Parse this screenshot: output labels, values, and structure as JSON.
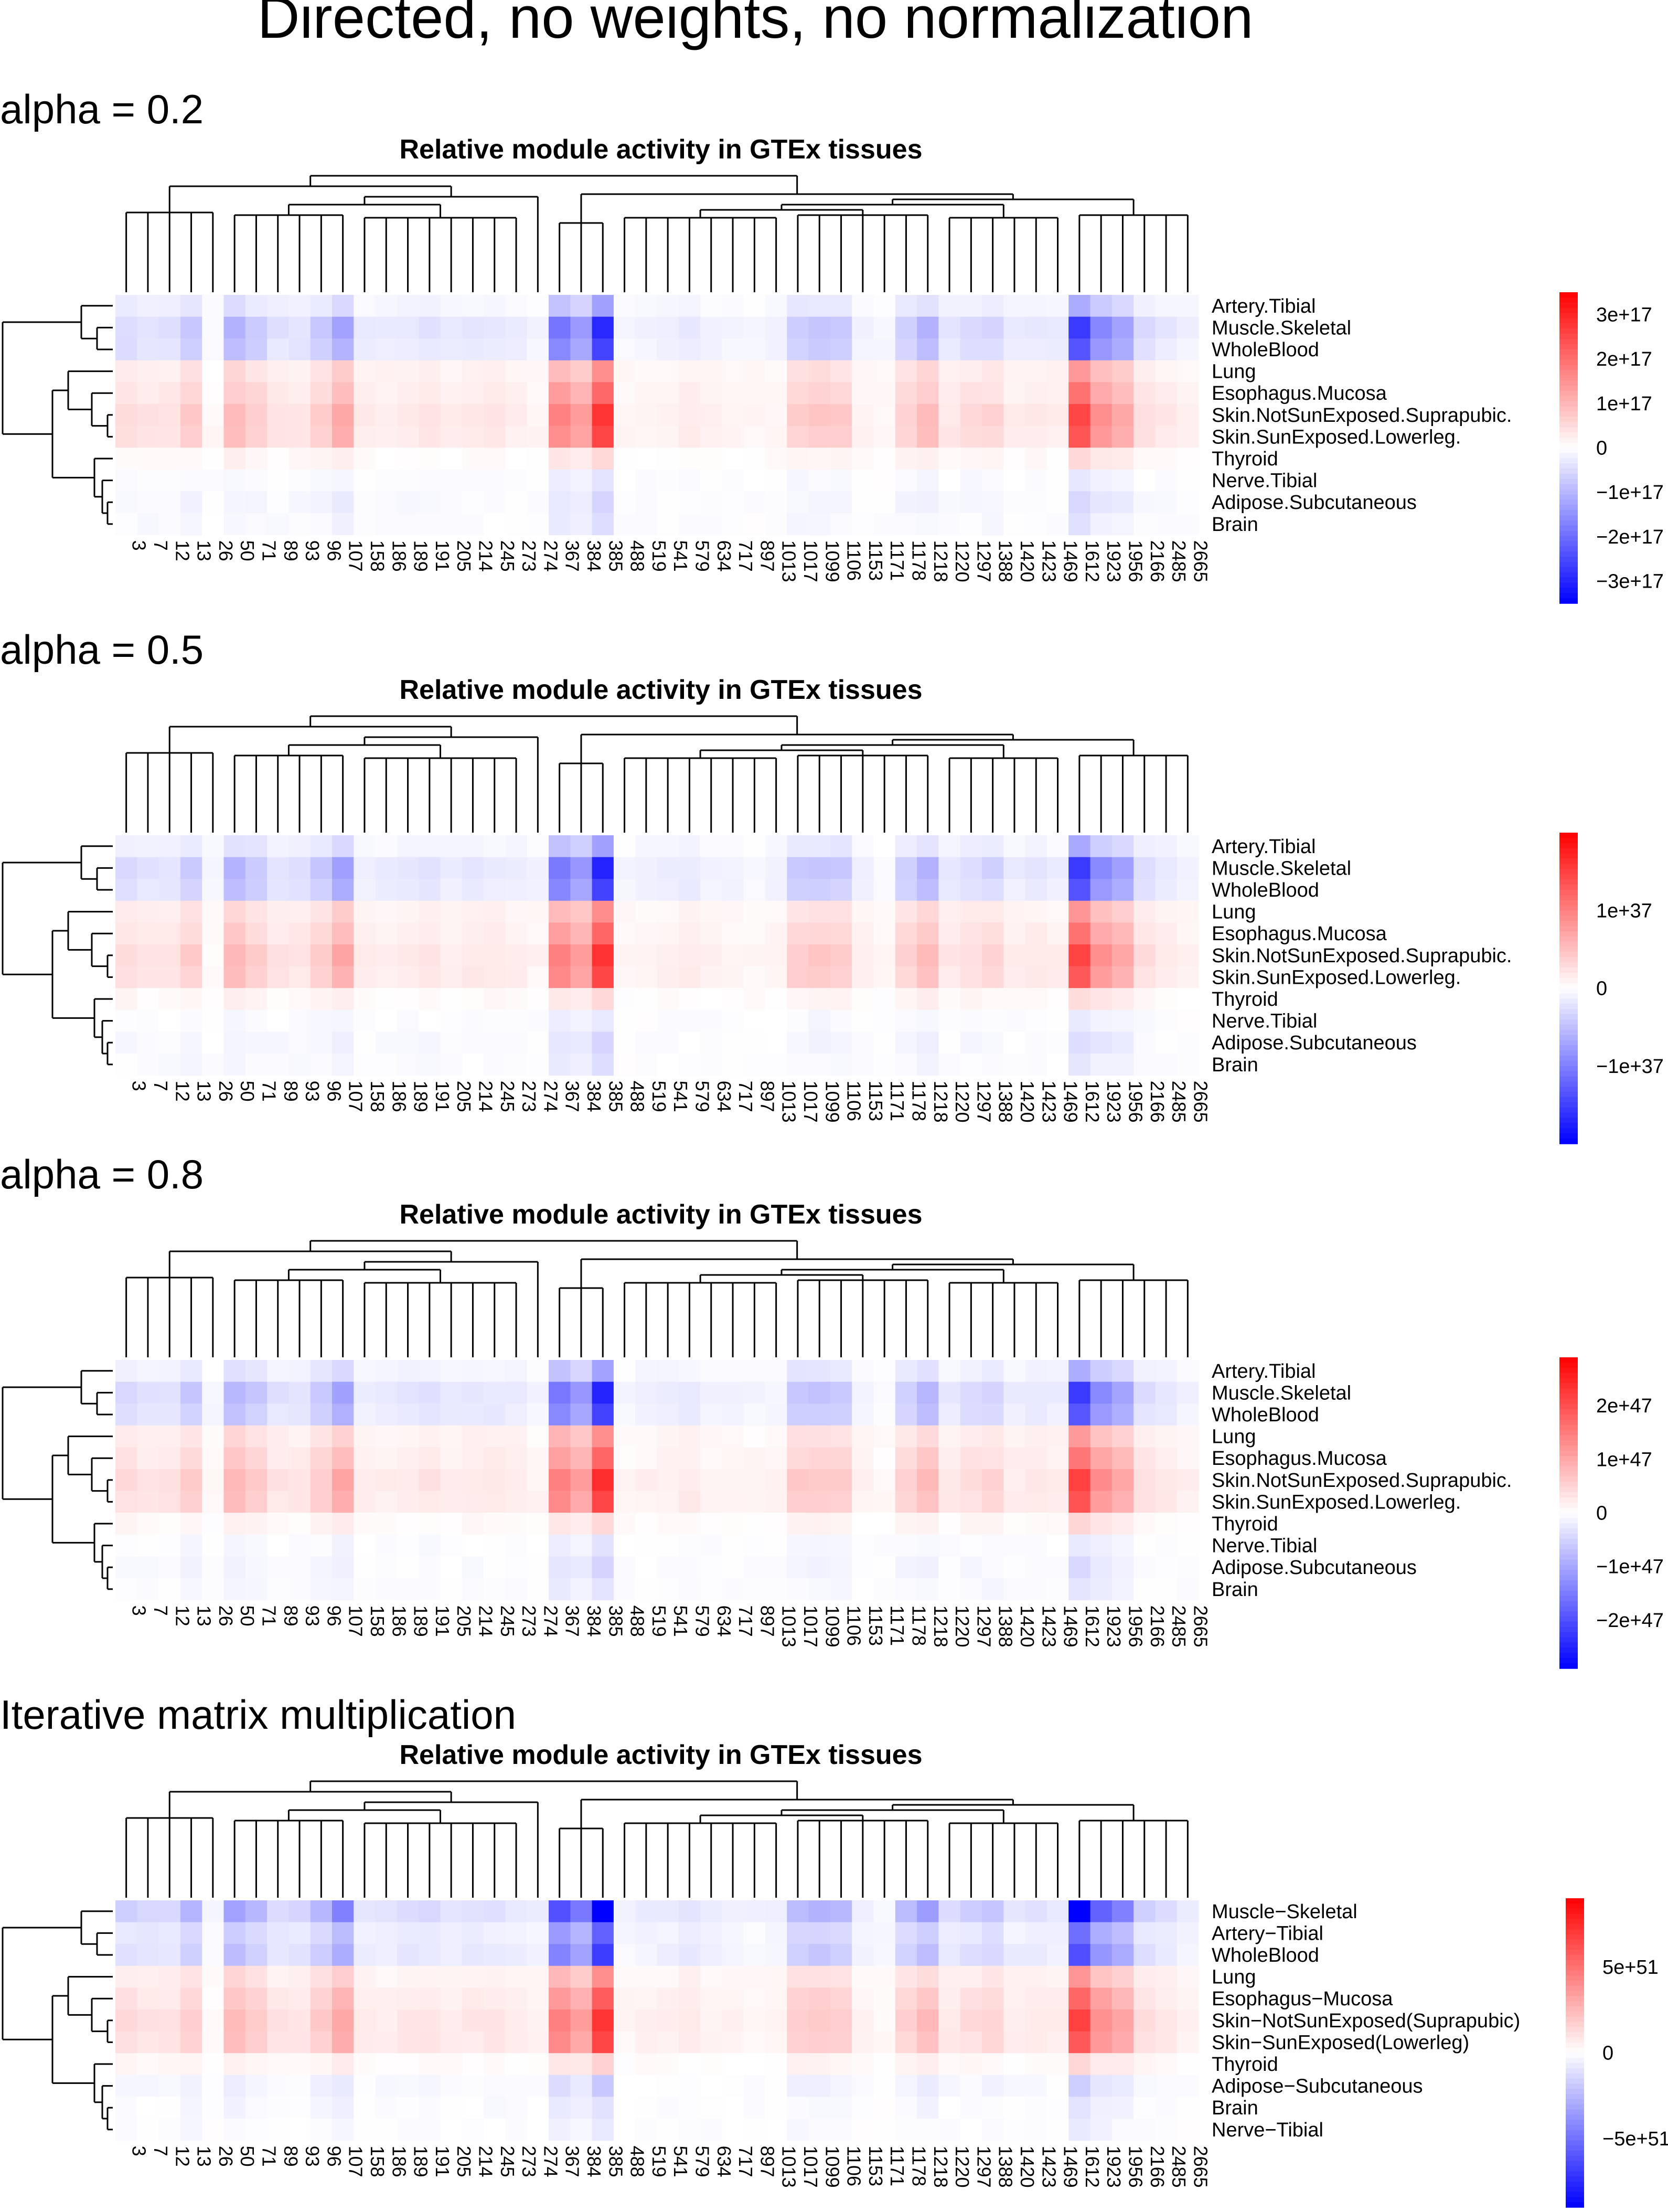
{
  "page": {
    "title": "Directed, no weights, no normalization"
  },
  "panels": [
    {
      "section_label": "alpha = 0.2",
      "chart_title": "Relative module activity in GTEx tissues",
      "rows": [
        "Artery.Tibial",
        "Muscle.Skeletal",
        "WholeBlood",
        "Lung",
        "Esophagus.Mucosa",
        "Skin.NotSunExposed.Suprapubic.",
        "Skin.SunExposed.Lowerleg.",
        "Thyroid",
        "Nerve.Tibial",
        "Adipose.Subcutaneous",
        "Brain"
      ],
      "legend_ticks": [
        "3e+17",
        "2e+17",
        "1e+17",
        "0",
        "−1e+17",
        "−2e+17",
        "−3e+17"
      ],
      "legend_values": [
        3,
        2,
        1,
        0,
        -1,
        -2,
        -3
      ],
      "legend_range": [
        -3.5,
        3.5
      ]
    },
    {
      "section_label": "alpha = 0.5",
      "chart_title": "Relative module activity in GTEx tissues",
      "rows": [
        "Artery.Tibial",
        "Muscle.Skeletal",
        "WholeBlood",
        "Lung",
        "Esophagus.Mucosa",
        "Skin.NotSunExposed.Suprapubic.",
        "Skin.SunExposed.Lowerleg.",
        "Thyroid",
        "Nerve.Tibial",
        "Adipose.Subcutaneous",
        "Brain"
      ],
      "legend_ticks": [
        "1e+37",
        "0",
        "−1e+37"
      ],
      "legend_values": [
        1,
        0,
        -1
      ],
      "legend_range": [
        -2,
        2
      ]
    },
    {
      "section_label": "alpha = 0.8",
      "chart_title": "Relative module activity in GTEx tissues",
      "rows": [
        "Artery.Tibial",
        "Muscle.Skeletal",
        "WholeBlood",
        "Lung",
        "Esophagus.Mucosa",
        "Skin.NotSunExposed.Suprapubic.",
        "Skin.SunExposed.Lowerleg.",
        "Thyroid",
        "Nerve.Tibial",
        "Adipose.Subcutaneous",
        "Brain"
      ],
      "legend_ticks": [
        "2e+47",
        "1e+47",
        "0",
        "−1e+47",
        "−2e+47"
      ],
      "legend_values": [
        2,
        1,
        0,
        -1,
        -2
      ],
      "legend_range": [
        -2.9,
        2.9
      ]
    },
    {
      "section_label": "Iterative matrix multiplication",
      "chart_title": "Relative module activity in GTEx tissues",
      "rows": [
        "Muscle−Skeletal",
        "Artery−Tibial",
        "WholeBlood",
        "Lung",
        "Esophagus−Mucosa",
        "Skin−NotSunExposed(Suprapubic)",
        "Skin−SunExposed(Lowerleg)",
        "Thyroid",
        "Adipose−Subcutaneous",
        "Brain",
        "Nerve−Tibial"
      ],
      "legend_ticks": [
        "5e+51",
        "0",
        "−5e+51"
      ],
      "legend_values": [
        5,
        0,
        -5
      ],
      "legend_range": [
        -9,
        9
      ]
    }
  ],
  "chart_data": {
    "type": "heatmap",
    "columns": [
      "3",
      "7",
      "12",
      "13",
      "26",
      "50",
      "71",
      "89",
      "93",
      "96",
      "107",
      "158",
      "186",
      "189",
      "191",
      "205",
      "214",
      "245",
      "273",
      "274",
      "367",
      "384",
      "385",
      "488",
      "519",
      "541",
      "579",
      "634",
      "717",
      "897",
      "1013",
      "1017",
      "1099",
      "1106",
      "1153",
      "1171",
      "1178",
      "1218",
      "1220",
      "1297",
      "1388",
      "1420",
      "1423",
      "1469",
      "1612",
      "1923",
      "1956",
      "2166",
      "2485",
      "2665"
    ],
    "column_weights": [
      0.15,
      0.12,
      0.12,
      0.22,
      0.03,
      0.3,
      0.22,
      0.12,
      0.12,
      0.22,
      0.38,
      0.08,
      0.08,
      0.1,
      0.12,
      0.08,
      0.1,
      0.1,
      0.08,
      0.05,
      0.55,
      0.42,
      0.88,
      0.04,
      0.06,
      0.07,
      0.09,
      0.06,
      0.05,
      0.04,
      0.05,
      0.22,
      0.24,
      0.22,
      0.06,
      0.03,
      0.2,
      0.3,
      0.1,
      0.15,
      0.18,
      0.08,
      0.1,
      0.08,
      0.8,
      0.48,
      0.38,
      0.14,
      0.1,
      0.06
    ],
    "row_weights_main": [
      -0.18,
      -0.42,
      -0.36,
      0.22,
      0.3,
      0.4,
      0.36,
      0.08,
      -0.05,
      -0.08,
      -0.06
    ],
    "row_weights_iterative": [
      -0.55,
      -0.3,
      -0.38,
      0.22,
      0.32,
      0.4,
      0.36,
      0.08,
      -0.1,
      -0.06,
      -0.04
    ],
    "value_scale_note": "relative activity, diverging blue-white-red"
  }
}
